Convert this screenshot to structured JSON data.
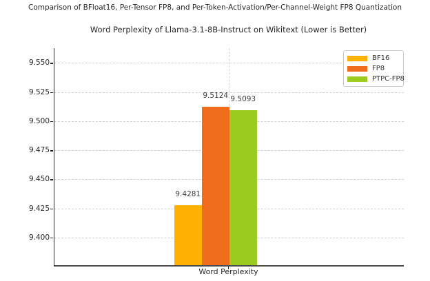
{
  "figure_title": "Comparison of BFloat16, Per-Tensor FP8, and Per-Token-Activation/Per-Channel-Weight FP8 Quantization",
  "chart_data": {
    "type": "bar",
    "title": "Word Perplexity of Llama-3.1-8B-Instruct on Wikitext (Lower is Better)",
    "categories": [
      "Word Perplexity"
    ],
    "series": [
      {
        "name": "BF16",
        "color": "#FFB000",
        "values": [
          9.4281
        ]
      },
      {
        "name": "FP8",
        "color": "#F06D1E",
        "values": [
          9.5124
        ]
      },
      {
        "name": "PTPC-FP8",
        "color": "#9ACB1E",
        "values": [
          9.5093
        ]
      }
    ],
    "bar_labels": [
      "9.4281",
      "9.5124",
      "9.5093"
    ],
    "xlabel": "Word Perplexity",
    "ylabel": "",
    "ylim": [
      9.3764,
      9.5626
    ],
    "yticks": [
      9.4,
      9.425,
      9.45,
      9.475,
      9.5,
      9.525,
      9.55
    ],
    "ytick_labels": [
      "9.400",
      "9.425",
      "9.450",
      "9.475",
      "9.500",
      "9.525",
      "9.550"
    ],
    "grid": true,
    "grid_style": "dashed",
    "legend": {
      "position": "upper right",
      "entries": [
        "BF16",
        "FP8",
        "PTPC-FP8"
      ]
    }
  },
  "colors": {
    "background": "#ffffff",
    "grid": "#d0d0d0",
    "left_spine": "#262626",
    "bottom_spine": "#4d4d4d",
    "text": "#262626"
  }
}
